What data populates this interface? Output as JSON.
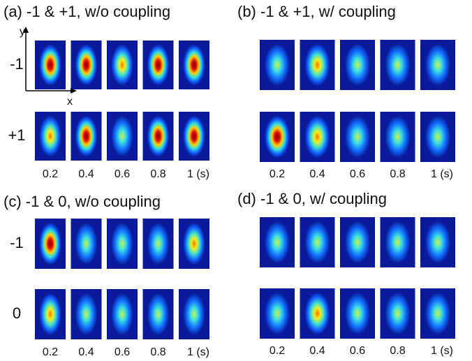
{
  "panels": [
    {
      "title": "(a) -1 & +1, w/o coupling",
      "rows": [
        "-1",
        "+1"
      ],
      "times": [
        "0.2",
        "0.4",
        "0.6",
        "0.8",
        "1 (s)"
      ]
    },
    {
      "title": "(b) -1 & +1, w/ coupling",
      "times": [
        "0.2",
        "0.4",
        "0.6",
        "0.8",
        "1 (s)"
      ]
    },
    {
      "title": "(c) -1 & 0, w/o coupling",
      "rows": [
        "-1",
        "0"
      ],
      "times": [
        "0.2",
        "0.4",
        "0.6",
        "0.8",
        "1 (s)"
      ]
    },
    {
      "title": "(d) -1 & 0, w/ coupling",
      "times": [
        "0.2",
        "0.4",
        "0.6",
        "0.8",
        "1 (s)"
      ]
    }
  ],
  "axes": {
    "x": "x",
    "y": "y"
  }
}
